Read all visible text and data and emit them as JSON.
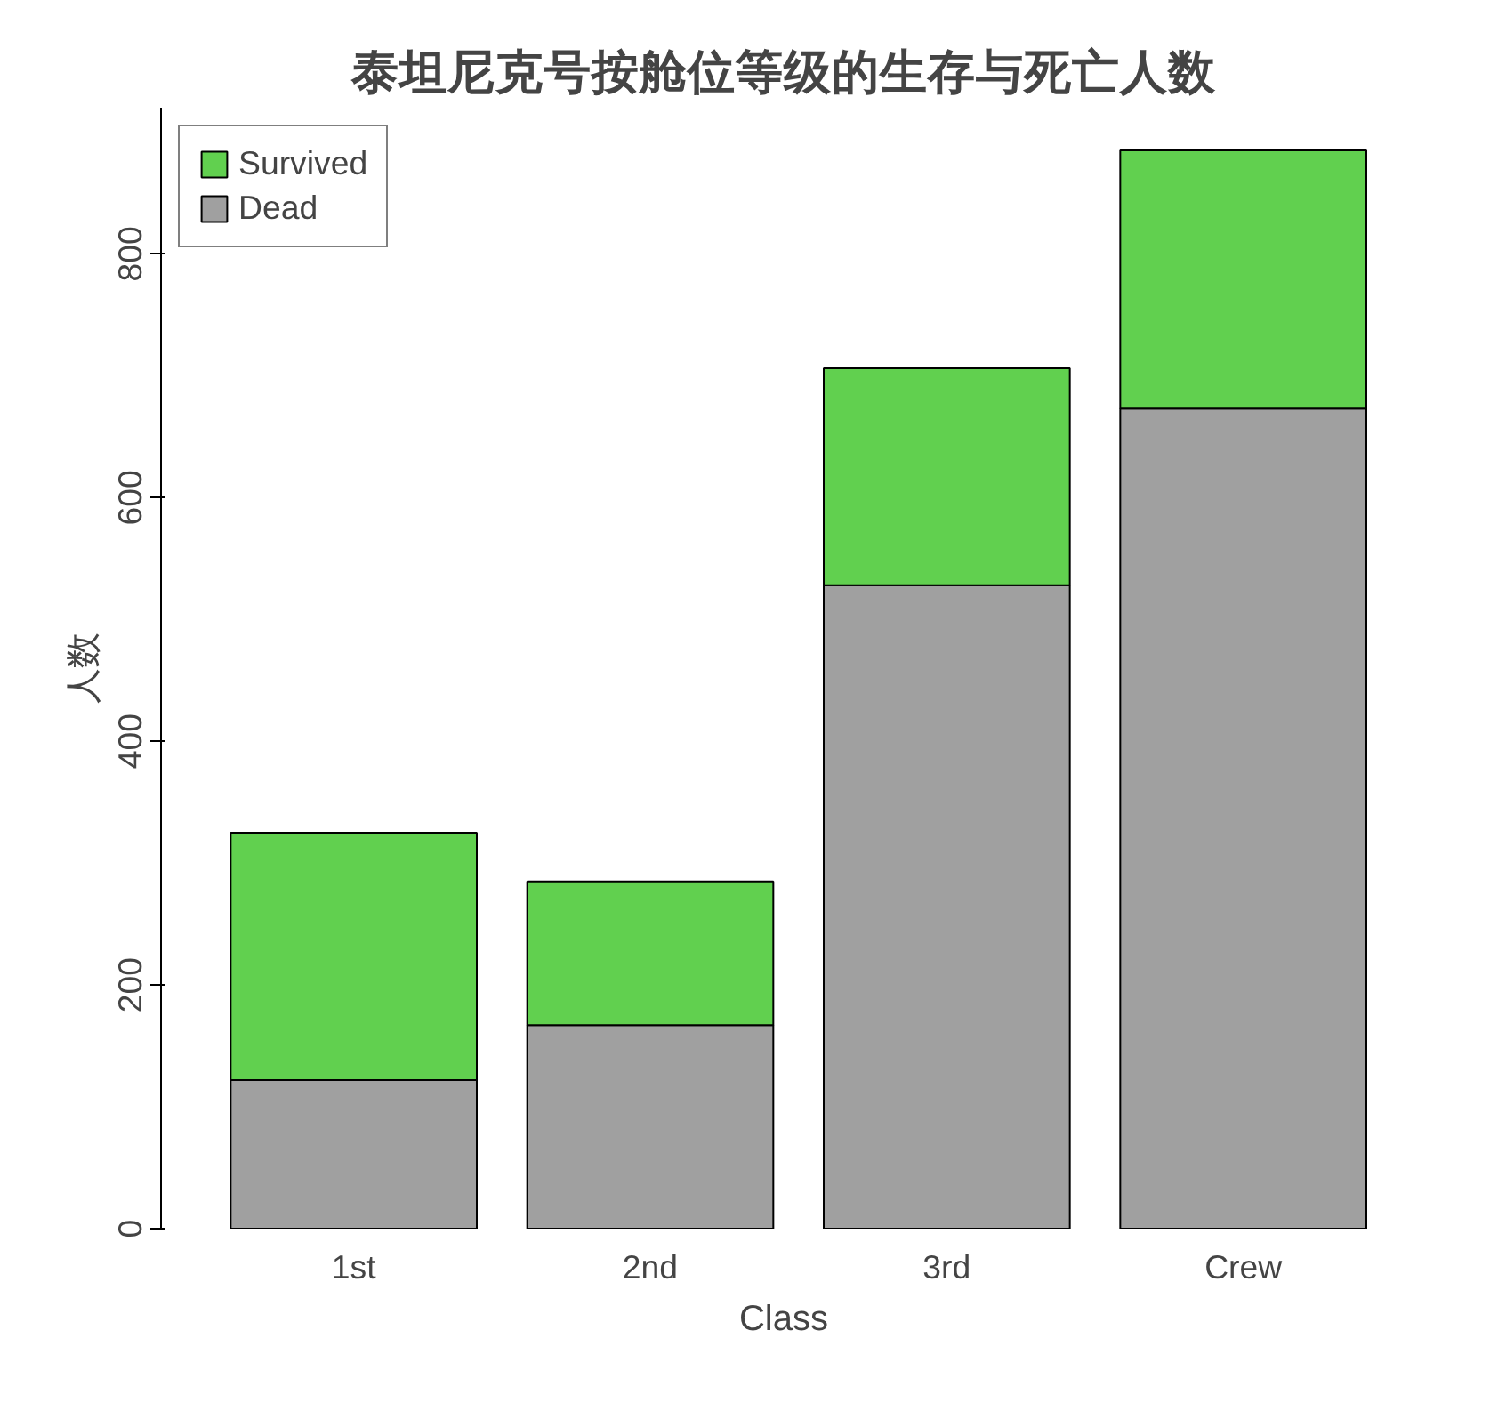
{
  "chart_data": {
    "type": "bar",
    "title": "泰坦尼克号按舱位等级的生存与死亡人数",
    "xlabel": "Class",
    "ylabel": "人数",
    "categories": [
      "1st",
      "2nd",
      "3rd",
      "Crew"
    ],
    "stacked": true,
    "series": [
      {
        "name": "Dead",
        "color": "#a0a0a0",
        "values": [
          122,
          167,
          528,
          673
        ]
      },
      {
        "name": "Survived",
        "color": "#61d04f",
        "values": [
          203,
          118,
          178,
          212
        ]
      }
    ],
    "ylim": [
      0,
      920
    ],
    "yticks": [
      0,
      200,
      400,
      600,
      800
    ],
    "grid": false,
    "legend": "top left"
  }
}
